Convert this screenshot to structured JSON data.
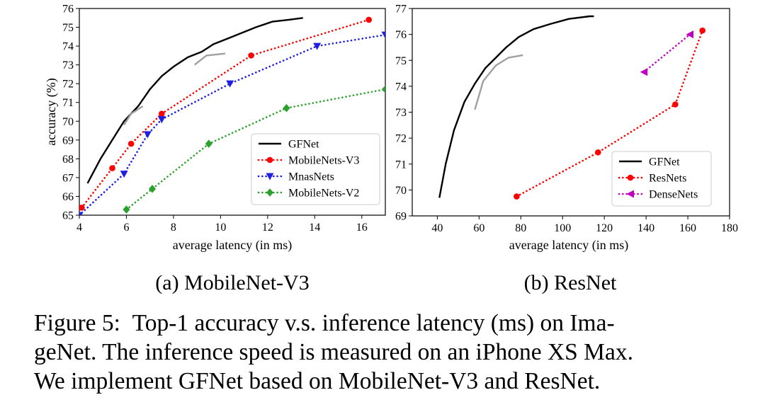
{
  "figure": {
    "label": "Figure 5:",
    "caption_lines": [
      "Top-1 accuracy v.s. inference latency (ms) on Ima-",
      "geNet. The inference speed is measured on an iPhone XS Max.",
      "We implement GFNet based on MobileNet-V3 and ResNet."
    ]
  },
  "colors": {
    "GFNet": "#000000",
    "GFNet_light": "#a0a0a0",
    "MobileNets-V3": "#ff0000",
    "MnasNets": "#1f1fe0",
    "MobileNets-V2": "#2ca02c",
    "ResNets": "#ff0000",
    "DenseNets": "#c000c0"
  },
  "chart_data": [
    {
      "type": "line",
      "subcaption": "(a)  MobileNet-V3",
      "xlabel": "average latency (in ms)",
      "ylabel": "accuracy (%)",
      "xlim": [
        4,
        17
      ],
      "ylim": [
        65,
        76
      ],
      "xticks": [
        4,
        6,
        8,
        10,
        12,
        14,
        16
      ],
      "yticks": [
        65,
        66,
        67,
        68,
        69,
        70,
        71,
        72,
        73,
        74,
        75,
        76
      ],
      "legend_position": "lower-right",
      "series": [
        {
          "name": "GFNet",
          "style": "solid",
          "marker": "none",
          "in_legend": true,
          "color_key": "GFNet",
          "x": [
            4.35,
            4.9,
            5.4,
            5.9,
            6.5,
            7.0,
            7.5,
            8.0,
            8.6,
            9.2,
            9.7,
            10.3,
            10.9,
            11.5,
            12.2,
            12.9,
            13.5
          ],
          "y": [
            66.7,
            68.0,
            69.0,
            70.0,
            70.8,
            71.7,
            72.4,
            72.9,
            73.4,
            73.7,
            74.1,
            74.4,
            74.7,
            75.0,
            75.3,
            75.4,
            75.5
          ]
        },
        {
          "name": "GFNet",
          "style": "solid",
          "marker": "none",
          "in_legend": false,
          "color_key": "GFNet_light",
          "x": [
            5.9,
            6.2,
            6.7
          ],
          "y": [
            69.8,
            70.4,
            70.8
          ]
        },
        {
          "name": "GFNet",
          "style": "solid",
          "marker": "none",
          "in_legend": false,
          "color_key": "GFNet_light",
          "x": [
            8.9,
            9.4,
            10.2
          ],
          "y": [
            73.0,
            73.5,
            73.6
          ]
        },
        {
          "name": "MobileNets-V3",
          "style": "dotted",
          "marker": "circle",
          "in_legend": true,
          "color_key": "MobileNets-V3",
          "x": [
            4.1,
            5.4,
            6.2,
            7.5,
            11.3,
            16.3
          ],
          "y": [
            65.4,
            67.5,
            68.8,
            70.4,
            73.5,
            75.4
          ]
        },
        {
          "name": "MnasNets",
          "style": "dotted",
          "marker": "triangle-down",
          "in_legend": true,
          "color_key": "MnasNets",
          "x": [
            4.0,
            5.9,
            6.9,
            7.5,
            10.4,
            14.1,
            17.0
          ],
          "y": [
            65.0,
            67.2,
            69.3,
            70.1,
            72.0,
            74.0,
            74.6
          ]
        },
        {
          "name": "MobileNets-V2",
          "style": "dotted",
          "marker": "diamond",
          "in_legend": true,
          "color_key": "MobileNets-V2",
          "x": [
            6.0,
            7.1,
            9.5,
            12.8,
            17.0
          ],
          "y": [
            65.3,
            66.4,
            68.8,
            70.7,
            71.7
          ]
        }
      ]
    },
    {
      "type": "line",
      "subcaption": "(b)  ResNet",
      "xlabel": "average latency (in ms)",
      "ylabel": "",
      "xlim": [
        28,
        180
      ],
      "ylim": [
        69,
        77
      ],
      "xticks": [
        40,
        60,
        80,
        100,
        120,
        140,
        160,
        180
      ],
      "yticks": [
        69,
        70,
        71,
        72,
        73,
        74,
        75,
        76,
        77
      ],
      "legend_position": "lower-right",
      "series": [
        {
          "name": "GFNet",
          "style": "solid",
          "marker": "none",
          "in_legend": true,
          "color_key": "GFNet",
          "x": [
            41,
            44,
            48,
            53,
            58,
            63,
            68,
            73,
            79,
            86,
            94,
            103,
            113,
            115
          ],
          "y": [
            69.7,
            71.0,
            72.3,
            73.4,
            74.1,
            74.7,
            75.1,
            75.5,
            75.9,
            76.2,
            76.4,
            76.6,
            76.7,
            76.7
          ]
        },
        {
          "name": "GFNet",
          "style": "solid",
          "marker": "none",
          "in_legend": false,
          "color_key": "GFNet_light",
          "x": [
            58,
            62,
            68,
            74,
            81
          ],
          "y": [
            73.1,
            74.2,
            74.8,
            75.1,
            75.2
          ]
        },
        {
          "name": "ResNets",
          "style": "dotted",
          "marker": "circle",
          "in_legend": true,
          "color_key": "ResNets",
          "x": [
            78,
            117,
            154,
            167
          ],
          "y": [
            69.75,
            71.45,
            73.3,
            76.15
          ]
        },
        {
          "name": "DenseNets",
          "style": "dotted",
          "marker": "triangle-left",
          "in_legend": true,
          "color_key": "DenseNets",
          "x": [
            139,
            161
          ],
          "y": [
            74.55,
            76.0
          ]
        }
      ]
    }
  ]
}
